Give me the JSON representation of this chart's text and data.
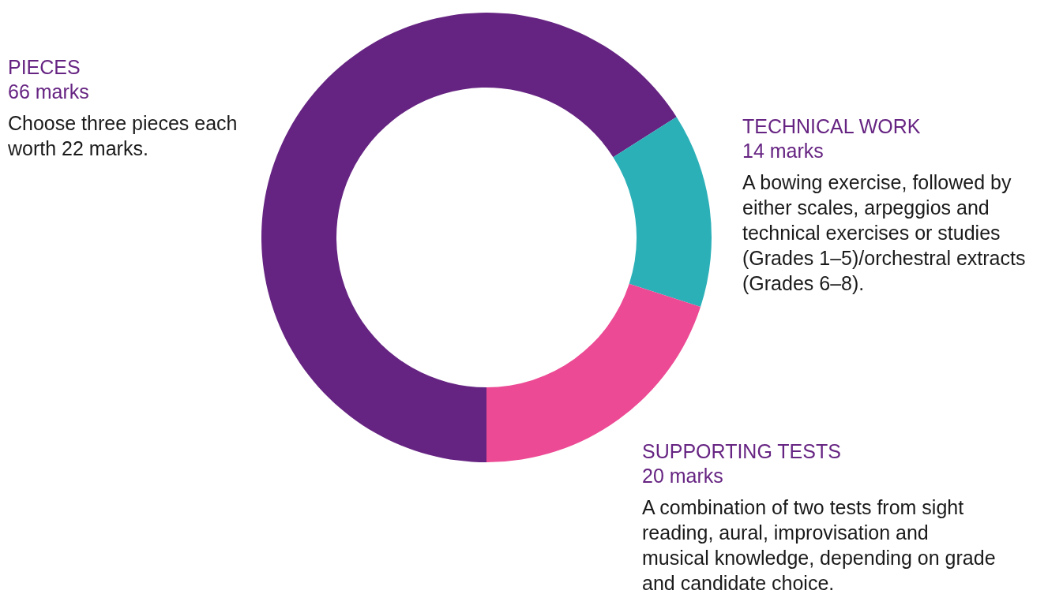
{
  "chart_data": {
    "type": "donut",
    "categories": [
      "PIECES",
      "TECHNICAL WORK",
      "SUPPORTING TESTS"
    ],
    "values": [
      66,
      14,
      20
    ],
    "colors": [
      "#662482",
      "#2bb0b8",
      "#ec4a94"
    ],
    "value_labels": [
      "66 marks",
      "14 marks",
      "20 marks"
    ],
    "annotations": [
      "Choose three pieces each worth 22 marks.",
      "A bowing exercise, followed by either scales, arpeggios and technical exercises or studies (Grades 1–5)/orchestral extracts (Grades 6–8).",
      "A combination of two tests from sight reading, aural, improvisation and musical knowledge, depending on grade and candidate choice."
    ]
  }
}
